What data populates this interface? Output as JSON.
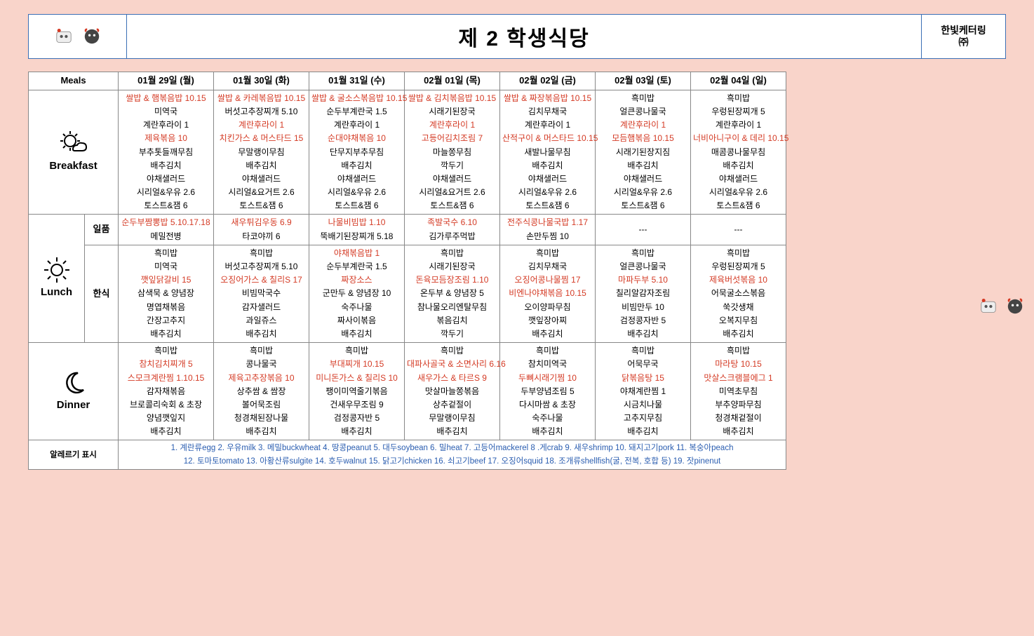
{
  "header": {
    "title": "제 2 학생식당",
    "catering_name": "한빛케터링",
    "catering_sub": "㈜"
  },
  "columns": {
    "meals_header": "Meals",
    "days": [
      "01월 29일 (월)",
      "01월 30일 (화)",
      "01월 31일 (수)",
      "02월 01일 (목)",
      "02월 02일 (금)",
      "02월 03일 (토)",
      "02월 04일 (일)"
    ]
  },
  "meals": {
    "breakfast": {
      "label": "Breakfast",
      "rows": [
        [
          {
            "t": "쌀밥 & 햄볶음밥 10.15",
            "r": true
          },
          {
            "t": "쌀밥 & 카레볶음밥 10.15",
            "r": true
          },
          {
            "t": "쌀밥 & 굴소스볶음밥 10.15",
            "r": true
          },
          {
            "t": "쌀밥 & 김치볶음밥 10.15",
            "r": true
          },
          {
            "t": "쌀밥 & 짜장볶음밥 10.15",
            "r": true
          },
          {
            "t": "흑미밥"
          },
          {
            "t": "흑미밥"
          }
        ],
        [
          {
            "t": "미역국"
          },
          {
            "t": "버섯고추장찌개 5.10"
          },
          {
            "t": "순두부계란국 1.5"
          },
          {
            "t": "시래기된장국"
          },
          {
            "t": "김치무채국"
          },
          {
            "t": "얼큰콩나물국"
          },
          {
            "t": "우렁된장찌개 5"
          }
        ],
        [
          {
            "t": "계란후라이 1"
          },
          {
            "t": "계란후라이 1",
            "r": true
          },
          {
            "t": "계란후라이 1"
          },
          {
            "t": "계란후라이 1",
            "r": true
          },
          {
            "t": "계란후라이 1"
          },
          {
            "t": "계란후라이 1",
            "r": true
          },
          {
            "t": "계란후라이 1"
          }
        ],
        [
          {
            "t": "제육볶음 10",
            "r": true
          },
          {
            "t": "치킨가스 & 머스타드 15",
            "r": true
          },
          {
            "t": "순대야채볶음 10",
            "r": true
          },
          {
            "t": "고등어김치조림 7",
            "r": true
          },
          {
            "t": "산적구이 & 머스타드 10.15",
            "r": true
          },
          {
            "t": "모듬햄볶음 10.15",
            "r": true
          },
          {
            "t": "너비아니구이 & 데리 10.15",
            "r": true
          }
        ],
        [
          {
            "t": "부추톳들깨무침"
          },
          {
            "t": "무말랭이무침"
          },
          {
            "t": "단무지부추무침"
          },
          {
            "t": "마늘쫑무침"
          },
          {
            "t": "새발나물무침"
          },
          {
            "t": "시래기된장지짐"
          },
          {
            "t": "매콤콩나물무침"
          }
        ],
        [
          {
            "t": "배추김치"
          },
          {
            "t": "배추김치"
          },
          {
            "t": "배추김치"
          },
          {
            "t": "깍두기"
          },
          {
            "t": "배추김치"
          },
          {
            "t": "배추김치"
          },
          {
            "t": "배추김치"
          }
        ],
        [
          {
            "t": "야채샐러드"
          },
          {
            "t": "야채샐러드"
          },
          {
            "t": "야채샐러드"
          },
          {
            "t": "야채샐러드"
          },
          {
            "t": "야채샐러드"
          },
          {
            "t": "야채샐러드"
          },
          {
            "t": "야채샐러드"
          }
        ],
        [
          {
            "t": "시리얼&우유 2.6"
          },
          {
            "t": "시리얼&요거트 2.6"
          },
          {
            "t": "시리얼&우유 2.6"
          },
          {
            "t": "시리얼&요거트 2.6"
          },
          {
            "t": "시리얼&우유 2.6"
          },
          {
            "t": "시리얼&우유 2.6"
          },
          {
            "t": "시리얼&우유 2.6"
          }
        ],
        [
          {
            "t": "토스트&잼 6"
          },
          {
            "t": "토스트&잼 6"
          },
          {
            "t": "토스트&잼 6"
          },
          {
            "t": "토스트&잼 6"
          },
          {
            "t": "토스트&잼 6"
          },
          {
            "t": "토스트&잼 6"
          },
          {
            "t": "토스트&잼 6"
          }
        ]
      ]
    },
    "lunch": {
      "label": "Lunch",
      "ilpum_label": "일품",
      "hansik_label": "한식",
      "ilpum": [
        [
          {
            "t": "순두부짬뽕밥 5.10.17.18",
            "r": true
          },
          {
            "t": "새우튀김우동 6.9",
            "r": true
          },
          {
            "t": "나물비빔밥 1.10",
            "r": true
          },
          {
            "t": "족발국수 6.10",
            "r": true
          },
          {
            "t": "전주식콩나물국밥 1.17",
            "r": true
          },
          {
            "t": "---"
          },
          {
            "t": "---"
          }
        ],
        [
          {
            "t": "메밀전병"
          },
          {
            "t": "타코야끼 6"
          },
          {
            "t": "뚝배기된장찌개 5.18"
          },
          {
            "t": "김가루주먹밥"
          },
          {
            "t": "손만두찜 10"
          },
          {
            "t": ""
          },
          {
            "t": ""
          }
        ]
      ],
      "hansik": [
        [
          {
            "t": "흑미밥"
          },
          {
            "t": "흑미밥"
          },
          {
            "t": "야채볶음밥 1",
            "r": true
          },
          {
            "t": "흑미밥"
          },
          {
            "t": "흑미밥"
          },
          {
            "t": "흑미밥"
          },
          {
            "t": "흑미밥"
          }
        ],
        [
          {
            "t": "미역국"
          },
          {
            "t": "버섯고추장찌개 5.10"
          },
          {
            "t": "순두부계란국 1.5"
          },
          {
            "t": "시래기된장국"
          },
          {
            "t": "김치무채국"
          },
          {
            "t": "얼큰콩나물국"
          },
          {
            "t": "우렁된장찌개 5"
          }
        ],
        [
          {
            "t": "깻잎닭갈비 15",
            "r": true
          },
          {
            "t": "오징어가스 & 칠리S 17",
            "r": true
          },
          {
            "t": "짜장소스",
            "r": true
          },
          {
            "t": "돈육모듬장조림 1.10",
            "r": true
          },
          {
            "t": "오징어콩나물찜 17",
            "r": true
          },
          {
            "t": "마파두부 5.10",
            "r": true
          },
          {
            "t": "제육버섯볶음 10",
            "r": true
          }
        ],
        [
          {
            "t": "삼색묵 & 양념장"
          },
          {
            "t": "비빔막국수"
          },
          {
            "t": "군만두 & 양념장 10"
          },
          {
            "t": "온두부 & 양념장 5"
          },
          {
            "t": "비엔나야채볶음 10.15",
            "r": true
          },
          {
            "t": "칠리알감자조림"
          },
          {
            "t": "어묵굴소스볶음"
          }
        ],
        [
          {
            "t": "명엽채볶음"
          },
          {
            "t": "감자샐러드"
          },
          {
            "t": "숙주나물"
          },
          {
            "t": "참나물오리엔탈무침"
          },
          {
            "t": "오이양파무침"
          },
          {
            "t": "비빔만두 10"
          },
          {
            "t": "쑥갓생채"
          }
        ],
        [
          {
            "t": "간장고추지"
          },
          {
            "t": "과일쥬스"
          },
          {
            "t": "짜사이볶음"
          },
          {
            "t": "볶음김치"
          },
          {
            "t": "깻잎장아찌"
          },
          {
            "t": "검정콩자반 5"
          },
          {
            "t": "오복지무침"
          }
        ],
        [
          {
            "t": "배추김치"
          },
          {
            "t": "배추김치"
          },
          {
            "t": "배추김치"
          },
          {
            "t": "깍두기"
          },
          {
            "t": "배추김치"
          },
          {
            "t": "배추김치"
          },
          {
            "t": "배추김치"
          }
        ]
      ]
    },
    "dinner": {
      "label": "Dinner",
      "rows": [
        [
          {
            "t": "흑미밥"
          },
          {
            "t": "흑미밥"
          },
          {
            "t": "흑미밥"
          },
          {
            "t": "흑미밥"
          },
          {
            "t": "흑미밥"
          },
          {
            "t": "흑미밥"
          },
          {
            "t": "흑미밥"
          }
        ],
        [
          {
            "t": "참치김치찌개 5",
            "r": true
          },
          {
            "t": "콩나물국"
          },
          {
            "t": "부대찌개 10.15",
            "r": true
          },
          {
            "t": "대파사골국 & 소면사리 6.16",
            "r": true
          },
          {
            "t": "참치미역국"
          },
          {
            "t": "어묵무국"
          },
          {
            "t": "마라탕 10.15",
            "r": true
          }
        ],
        [
          {
            "t": "스모크계란찜 1.10.15",
            "r": true
          },
          {
            "t": "제육고추장볶음 10",
            "r": true
          },
          {
            "t": "미니돈가스 & 칠리S 10",
            "r": true
          },
          {
            "t": "새우가스 & 타르S 9",
            "r": true
          },
          {
            "t": "두뼈시래기찜 10",
            "r": true
          },
          {
            "t": "닭볶음탕 15",
            "r": true
          },
          {
            "t": "맛살스크램블에그 1",
            "r": true
          }
        ],
        [
          {
            "t": "감자채볶음"
          },
          {
            "t": "상추쌈 & 쌈장"
          },
          {
            "t": "팽이미역줄기볶음"
          },
          {
            "t": "맛살마늘쫑볶음"
          },
          {
            "t": "두부양념조림 5"
          },
          {
            "t": "야채계란찜 1"
          },
          {
            "t": "미역초무침"
          }
        ],
        [
          {
            "t": "브로콜리숙회 & 초장"
          },
          {
            "t": "볼어묵조림"
          },
          {
            "t": "건새우무조림 9"
          },
          {
            "t": "상추겉절이"
          },
          {
            "t": "다시마쌈 & 초장"
          },
          {
            "t": "시금치나물"
          },
          {
            "t": "부추양파무침"
          }
        ],
        [
          {
            "t": "양념깻잎지"
          },
          {
            "t": "청경채된장나물"
          },
          {
            "t": "검정콩자반 5"
          },
          {
            "t": "무말랭이무침"
          },
          {
            "t": "숙주나물"
          },
          {
            "t": "고추지무침"
          },
          {
            "t": "청경채겉절이"
          }
        ],
        [
          {
            "t": "배추김치"
          },
          {
            "t": "배추김치"
          },
          {
            "t": "배추김치"
          },
          {
            "t": "배추김치"
          },
          {
            "t": "배추김치"
          },
          {
            "t": "배추김치"
          },
          {
            "t": "배추김치"
          }
        ]
      ]
    }
  },
  "allergy": {
    "label": "알레르기 표시",
    "line1": "1. 계란류egg 2. 우유milk 3. 메밀buckwheat 4. 땅콩peanut 5. 대두soybean 6. 밀heat 7. 고등어mackerel 8 .게crab 9. 새우shrimp 10. 돼지고기pork 11. 복숭아peach",
    "line2": "12. 토마토tomato 13. 아황산류sulgite 14. 호두walnut 15. 닭고기chicken 16. 쇠고기beef 17. 오징어squid 18. 조개류shellfish(굴, 전복, 호합 등) 19. 잣pinenut"
  },
  "colors": {
    "page_bg": "#f9d4ca",
    "border": "#3b6fb5",
    "highlight": "#d43a24",
    "allergy_text": "#2a5db0"
  }
}
